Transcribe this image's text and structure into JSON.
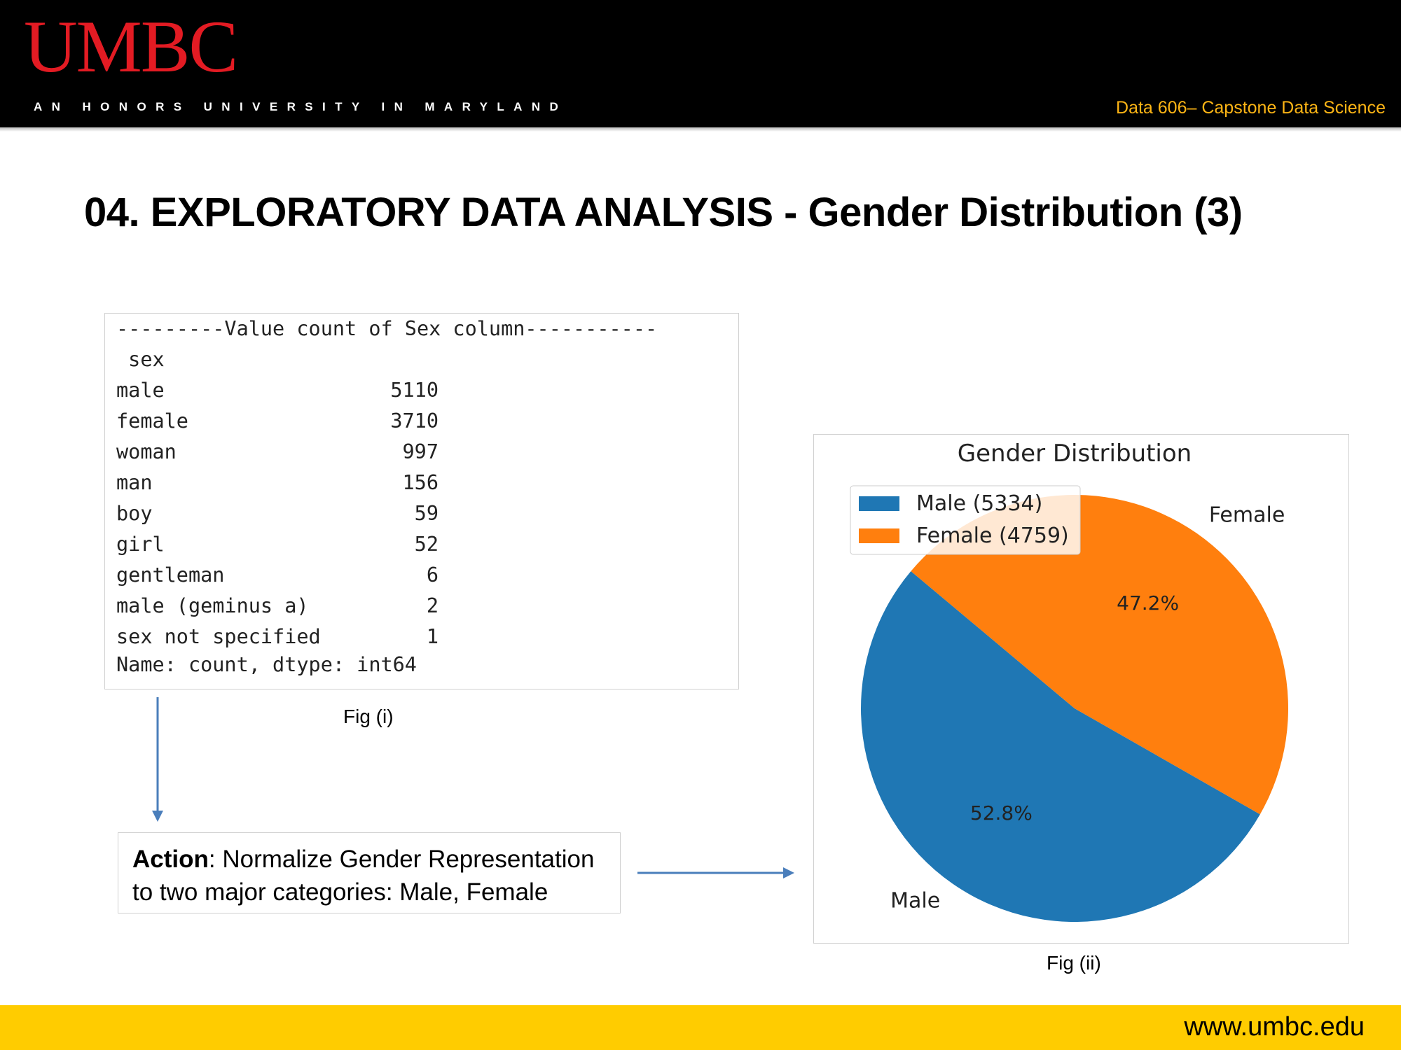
{
  "header": {
    "logo": "UMBC",
    "tagline": "AN HONORS UNIVERSITY IN MARYLAND",
    "course": "Data 606– Capstone Data Science",
    "colors": {
      "bg": "#000000",
      "logo": "#e31b23",
      "course": "#fdb515"
    }
  },
  "slide": {
    "title": "04. EXPLORATORY DATA ANALYSIS - Gender Distribution (3)"
  },
  "value_counts": {
    "header_line": "---------Value count of Sex column-----------",
    "index_name": " sex",
    "rows": [
      {
        "label": "male",
        "count": "5110"
      },
      {
        "label": "female",
        "count": "3710"
      },
      {
        "label": "woman",
        "count": "997"
      },
      {
        "label": "man",
        "count": "156"
      },
      {
        "label": "boy",
        "count": "59"
      },
      {
        "label": "girl",
        "count": "52"
      },
      {
        "label": "gentleman",
        "count": "6"
      },
      {
        "label": "male (geminus a)",
        "count": "2"
      },
      {
        "label": "sex not specified",
        "count": "1"
      }
    ],
    "footer_line": "Name: count, dtype: int64",
    "caption": "Fig (i)"
  },
  "action": {
    "bold": "Action",
    "text": ": Normalize Gender Representation to two major categories: Male, Female"
  },
  "chart_caption": "Fig (ii)",
  "chart_data": {
    "type": "pie",
    "title": "Gender Distribution",
    "categories": [
      "Male",
      "Female"
    ],
    "values": [
      5334,
      4759
    ],
    "percent_labels": [
      "52.8%",
      "47.2%"
    ],
    "legend": [
      "Male (5334)",
      "Female (4759)"
    ],
    "legend_position": "upper-left",
    "colors": [
      "#1f77b4",
      "#ff7f0e"
    ],
    "start_angle_deg": 140
  },
  "footer": {
    "url": "www.umbc.edu",
    "color": "#ffcc00"
  }
}
